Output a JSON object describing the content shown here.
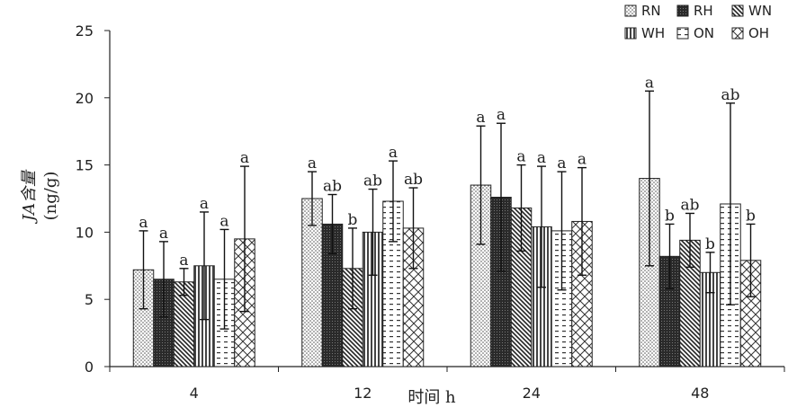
{
  "chart_data": {
    "type": "bar",
    "xlabel": "时间 h",
    "ylabel": "JA含量",
    "ylabel_unit": "(ng/g)",
    "ylim": [
      0,
      25
    ],
    "yticks": [
      0,
      5,
      10,
      15,
      20,
      25
    ],
    "legend_position": "top-right",
    "categories": [
      "4",
      "12",
      "24",
      "48"
    ],
    "series": [
      {
        "name": "RN",
        "values": [
          7.2,
          12.5,
          13.5,
          14.0
        ],
        "errors": [
          2.9,
          2.0,
          4.4,
          6.5
        ],
        "labels": [
          "a",
          "a",
          "a",
          "a"
        ],
        "pattern": "dots",
        "color": "#ffffff"
      },
      {
        "name": "RH",
        "values": [
          6.5,
          10.6,
          12.6,
          8.2
        ],
        "errors": [
          2.8,
          2.2,
          5.5,
          2.4
        ],
        "labels": [
          "a",
          "ab",
          "a",
          "b"
        ],
        "pattern": "dark",
        "color": "#3a3a3a"
      },
      {
        "name": "WN",
        "values": [
          6.3,
          7.3,
          11.8,
          9.4
        ],
        "errors": [
          1.0,
          3.0,
          3.2,
          2.0
        ],
        "labels": [
          "a",
          "b",
          "a",
          "ab"
        ],
        "pattern": "back-diagonal",
        "color": "#ffffff"
      },
      {
        "name": "WH",
        "values": [
          7.5,
          10.0,
          10.4,
          7.0
        ],
        "errors": [
          4.0,
          3.2,
          4.5,
          1.5
        ],
        "labels": [
          "a",
          "ab",
          "a",
          "b"
        ],
        "pattern": "vertical",
        "color": "#ffffff"
      },
      {
        "name": "ON",
        "values": [
          6.5,
          12.3,
          10.1,
          12.1
        ],
        "errors": [
          3.7,
          3.0,
          4.4,
          7.5
        ],
        "labels": [
          "a",
          "a",
          "a",
          "ab"
        ],
        "pattern": "dashes",
        "color": "#ffffff"
      },
      {
        "name": "OH",
        "values": [
          9.5,
          10.3,
          10.8,
          7.9
        ],
        "errors": [
          5.4,
          3.0,
          4.0,
          2.7
        ],
        "labels": [
          "a",
          "ab",
          "a",
          "b"
        ],
        "pattern": "diamond",
        "color": "#ffffff"
      }
    ]
  }
}
